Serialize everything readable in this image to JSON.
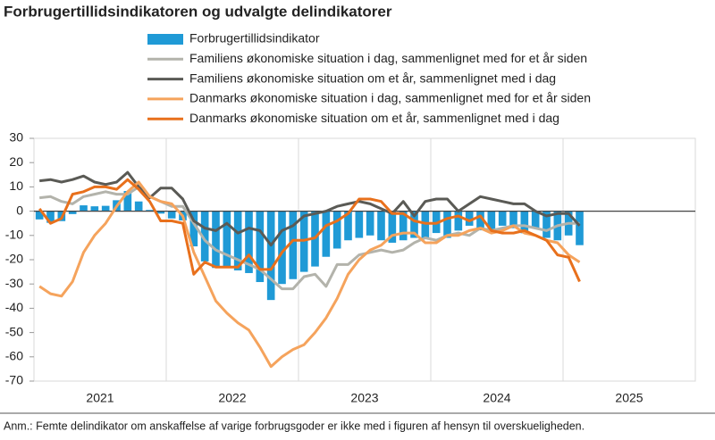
{
  "chart_data": {
    "type": "bar-line",
    "title": "Forbrugertillidsindikatoren og udvalgte delindikatorer",
    "footnote": "Anm.: Femte delindikator om anskaffelse af varige forbrugsgoder er ikke med i figuren af hensyn til overskueligheden.",
    "x_labels": [
      "2021",
      "2022",
      "2023",
      "2024",
      "2025"
    ],
    "ylim": [
      -70,
      30
    ],
    "yticks": [
      30,
      20,
      10,
      0,
      -10,
      -20,
      -30,
      -40,
      -50,
      -60,
      -70
    ],
    "grid": true,
    "series": [
      {
        "name": "Forbrugertillidsindikator",
        "kind": "bar",
        "color": "#1f9ad6",
        "values": [
          -3.4,
          -4.8,
          -4.1,
          -1.2,
          2.4,
          2.0,
          2.2,
          4.5,
          8.3,
          4.0,
          0.5,
          -1.0,
          -3.0,
          -3.8,
          -14.5,
          -20.7,
          -23.4,
          -22.9,
          -24.4,
          -25.5,
          -29.2,
          -36.6,
          -30.0,
          -28.0,
          -25.0,
          -22.8,
          -18.8,
          -15.4,
          -12.0,
          -11.0,
          -10.0,
          -12.0,
          -13.0,
          -12.0,
          -11.0,
          -11.0,
          -9.0,
          -11.0,
          -8.0,
          -6.0,
          -7.9,
          -8.0,
          -6.0,
          -7.0,
          -9.1,
          -7.0,
          -11.0,
          -12.0,
          -10.0,
          -14.0
        ]
      },
      {
        "name": "Familiens økonomiske situation i dag, sammenlignet med for et år siden",
        "kind": "line",
        "color": "#b3b3ab",
        "values": [
          5.5,
          6,
          4,
          3,
          6,
          7,
          8,
          7,
          7,
          10,
          6,
          4,
          2,
          2,
          -5,
          -12,
          -16,
          -18,
          -20,
          -22,
          -24,
          -28,
          -32,
          -32,
          -27,
          -26,
          -31,
          -22,
          -22,
          -18,
          -17,
          -16,
          -17,
          -16,
          -13,
          -11,
          -12,
          -10,
          -9,
          -10,
          -7,
          -8,
          -7,
          -6,
          -6,
          -7,
          -8,
          -6,
          -5,
          -5
        ]
      },
      {
        "name": "Familiens økonomiske situation om et år, sammenlignet med i dag",
        "kind": "line",
        "color": "#5a5a55",
        "values": [
          12.5,
          13,
          12,
          13,
          14.5,
          12,
          11,
          12,
          16,
          10,
          5.5,
          9.5,
          9.5,
          5,
          -4,
          -7,
          -8,
          -5,
          -9,
          -7,
          -8,
          -14,
          -8,
          -6,
          -2,
          -1,
          0,
          2,
          3,
          4,
          3,
          1,
          -1,
          4,
          -2,
          4,
          5,
          5,
          0,
          3,
          6,
          5,
          4,
          3,
          3,
          0,
          -2,
          -1,
          -1,
          -6
        ]
      },
      {
        "name": "Danmarks økonomiske situation i dag, sammenlignet med for et år siden",
        "kind": "line",
        "color": "#f5a35c",
        "values": [
          -31,
          -34,
          -35,
          -29,
          -17,
          -10,
          -5,
          2,
          8,
          12,
          6,
          4,
          3,
          -2,
          -17,
          -27,
          -37,
          -42,
          -46,
          -49,
          -56,
          -64,
          -60,
          -57,
          -55,
          -50,
          -44,
          -36,
          -26,
          -20,
          -16,
          -14,
          -10,
          -9,
          -9,
          -13,
          -13,
          -10,
          -10,
          -8,
          -7,
          -9,
          -8,
          -6,
          -9,
          -10,
          -12,
          -13,
          -18,
          -21
        ]
      },
      {
        "name": "Danmarks økonomiske situation om et år, sammenlignet med i dag",
        "kind": "line",
        "color": "#e8701c",
        "values": [
          1,
          -5,
          -3,
          7,
          8,
          10,
          10,
          9,
          13,
          9,
          4,
          -4,
          -4,
          -5,
          -26,
          -21,
          -23,
          -23,
          -23,
          -18,
          -24,
          -24,
          -17,
          -12,
          -12,
          -11,
          -6,
          -4,
          -1,
          5,
          5,
          4,
          -1,
          -1,
          -4,
          -5,
          -5,
          -3,
          -2,
          -4,
          -2,
          -8,
          -9,
          -9,
          -8,
          -10,
          -12,
          -18,
          -19,
          -29
        ]
      }
    ]
  }
}
